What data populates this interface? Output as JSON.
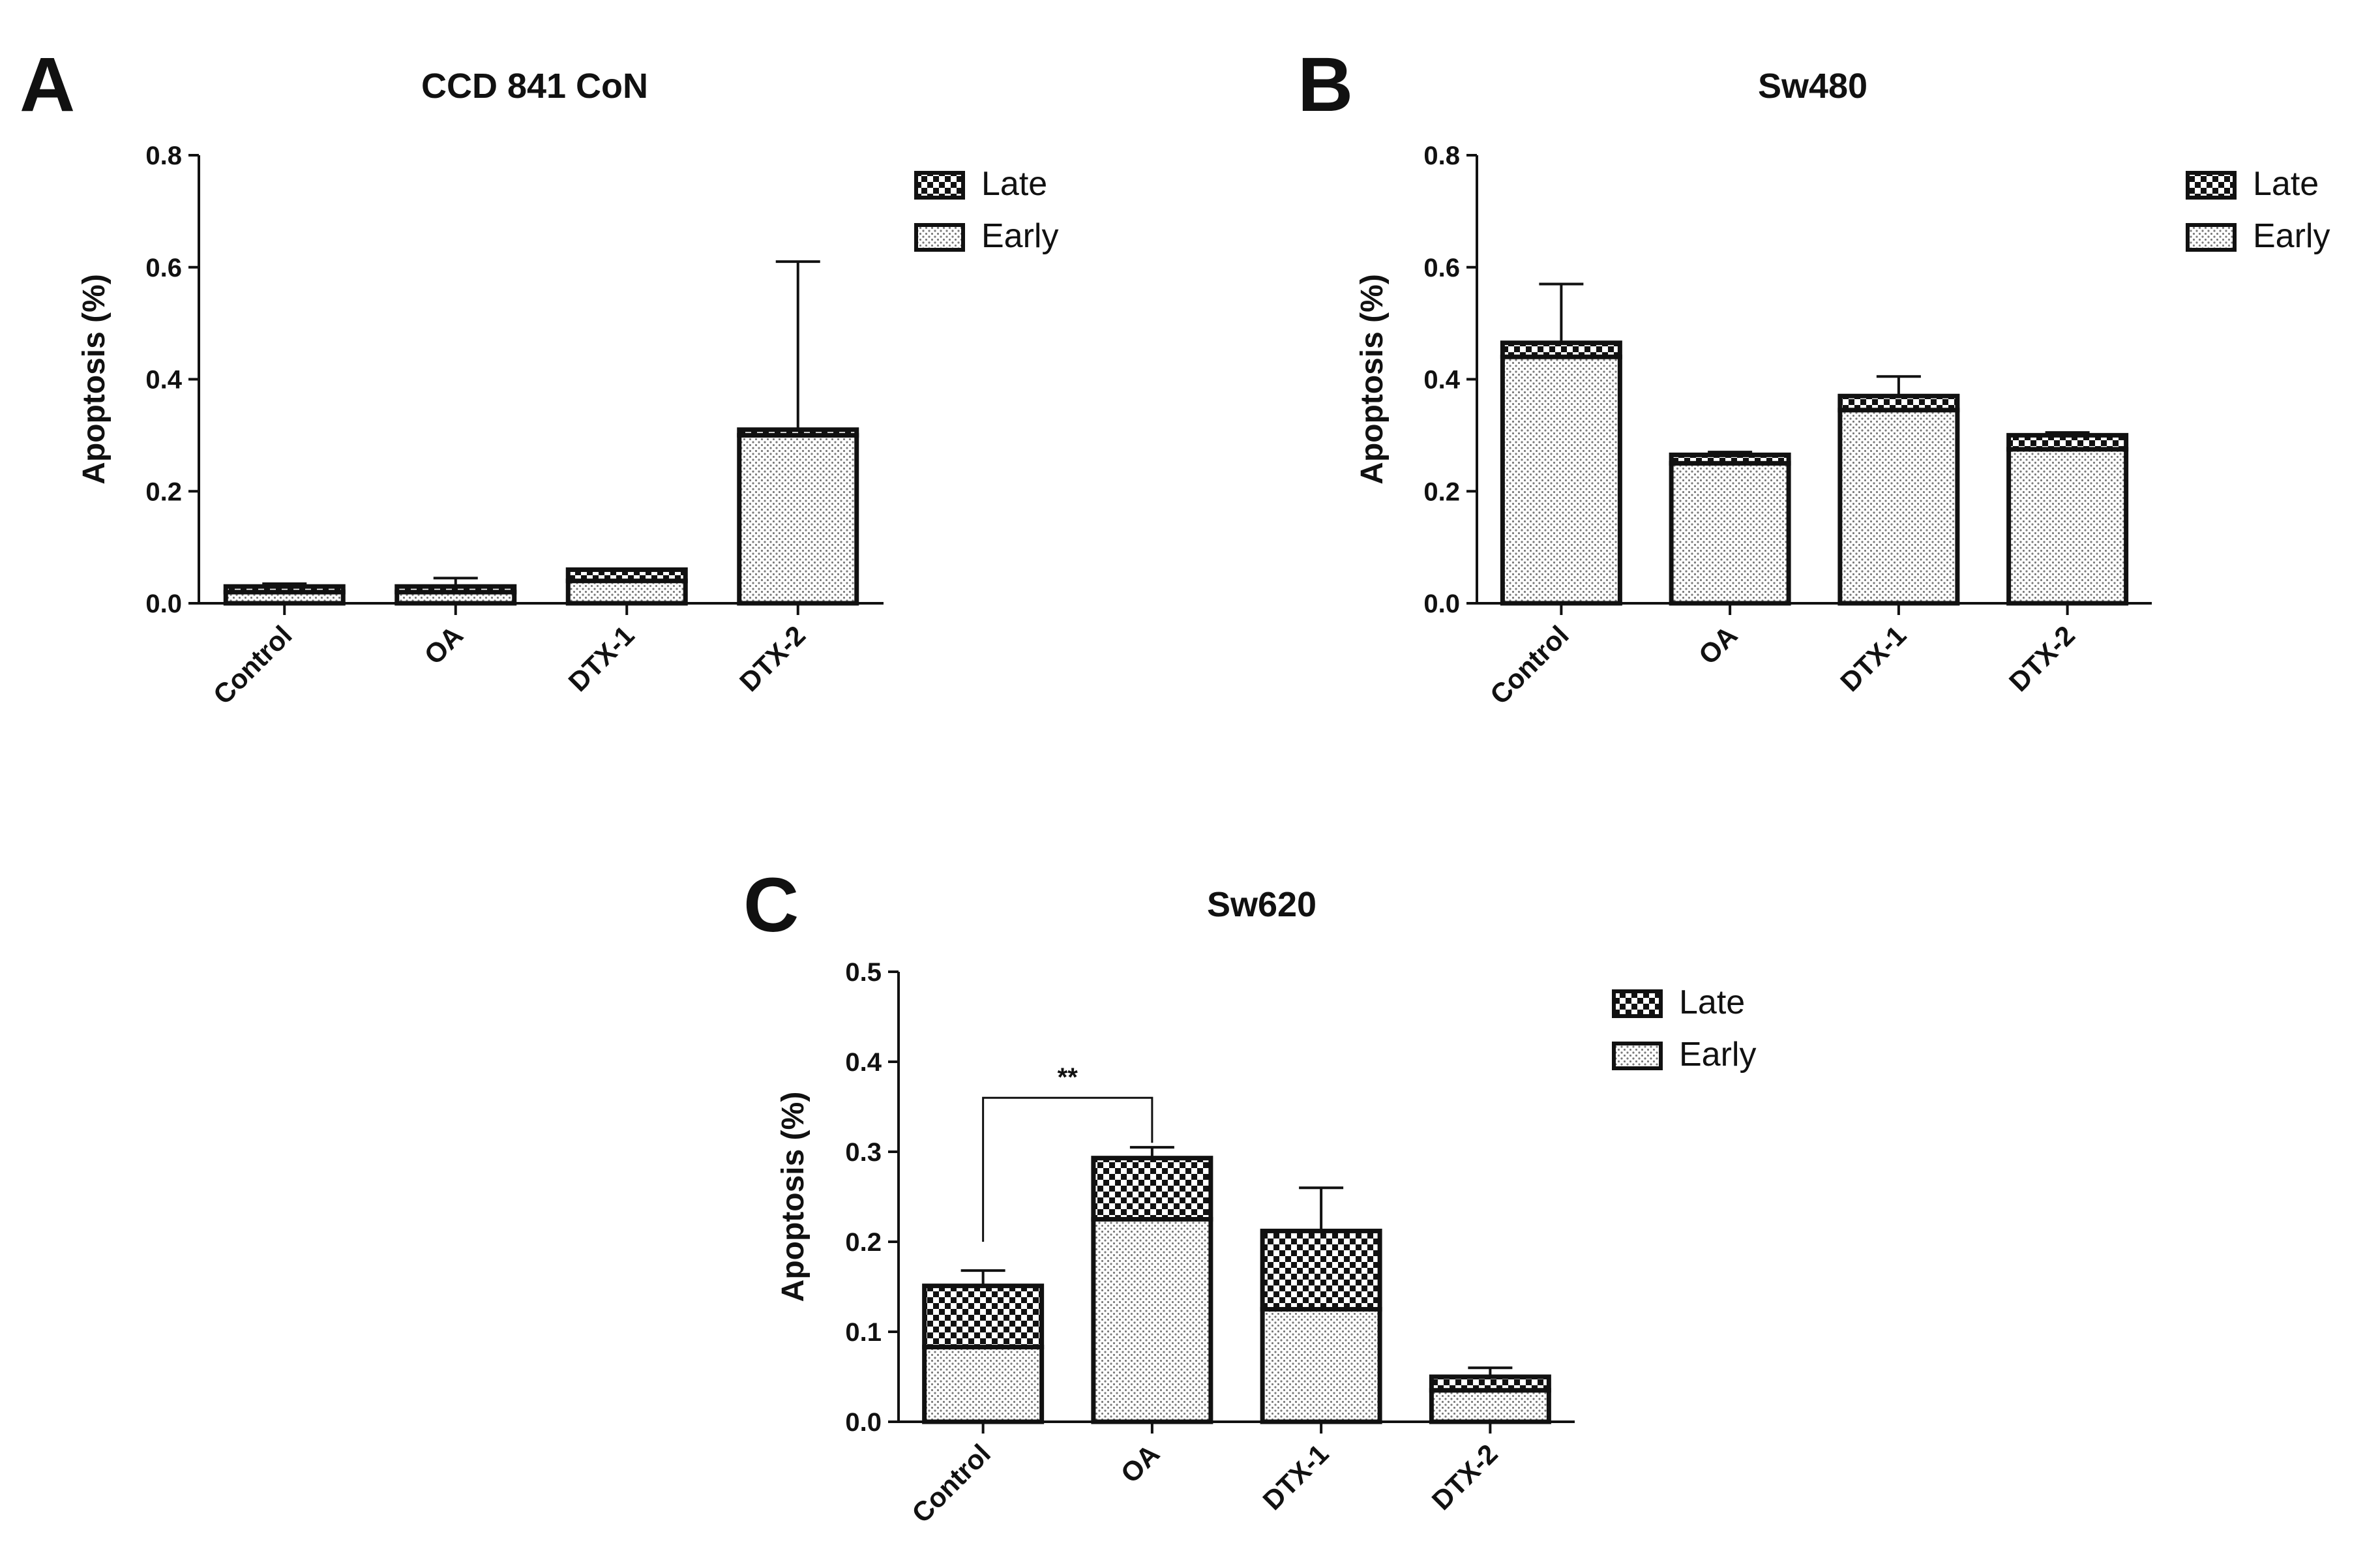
{
  "chart_data": [
    {
      "panel": "A",
      "type": "bar",
      "stacked": true,
      "title": "CCD 841 CoN",
      "xlabel": "",
      "ylabel": "Apoptosis (%)",
      "ylim": [
        0,
        0.8
      ],
      "yticks": [
        "0.0",
        "0.2",
        "0.4",
        "0.6",
        "0.8"
      ],
      "categories": [
        "Control",
        "OA",
        "DTX-1",
        "DTX-2"
      ],
      "series": [
        {
          "name": "Early",
          "pattern": "dots",
          "values": [
            0.02,
            0.02,
            0.04,
            0.3
          ]
        },
        {
          "name": "Late",
          "pattern": "checker",
          "values": [
            0.01,
            0.01,
            0.02,
            0.01
          ]
        }
      ],
      "error_top": [
        0.035,
        0.045,
        0.06,
        0.61
      ],
      "legend": [
        "Late",
        "Early"
      ],
      "significance": []
    },
    {
      "panel": "B",
      "type": "bar",
      "stacked": true,
      "title": "Sw480",
      "xlabel": "",
      "ylabel": "Apoptosis (%)",
      "ylim": [
        0,
        0.8
      ],
      "yticks": [
        "0.0",
        "0.2",
        "0.4",
        "0.6",
        "0.8"
      ],
      "categories": [
        "Control",
        "OA",
        "DTX-1",
        "DTX-2"
      ],
      "series": [
        {
          "name": "Early",
          "pattern": "dots",
          "values": [
            0.44,
            0.25,
            0.345,
            0.275
          ]
        },
        {
          "name": "Late",
          "pattern": "checker",
          "values": [
            0.025,
            0.015,
            0.025,
            0.025
          ]
        }
      ],
      "error_top": [
        0.57,
        0.27,
        0.405,
        0.305
      ],
      "legend": [
        "Late",
        "Early"
      ],
      "significance": []
    },
    {
      "panel": "C",
      "type": "bar",
      "stacked": true,
      "title": "Sw620",
      "xlabel": "",
      "ylabel": "Apoptosis (%)",
      "ylim": [
        0,
        0.5
      ],
      "yticks": [
        "0.0",
        "0.1",
        "0.2",
        "0.3",
        "0.4",
        "0.5"
      ],
      "categories": [
        "Control",
        "OA",
        "DTX-1",
        "DTX-2"
      ],
      "series": [
        {
          "name": "Early",
          "pattern": "dots",
          "values": [
            0.083,
            0.225,
            0.125,
            0.035
          ]
        },
        {
          "name": "Late",
          "pattern": "checker",
          "values": [
            0.068,
            0.068,
            0.087,
            0.015
          ]
        }
      ],
      "error_top": [
        0.168,
        0.305,
        0.26,
        0.06
      ],
      "legend": [
        "Late",
        "Early"
      ],
      "significance": [
        {
          "from": "Control",
          "to": "OA",
          "label": "**",
          "y": 0.36
        }
      ]
    }
  ]
}
